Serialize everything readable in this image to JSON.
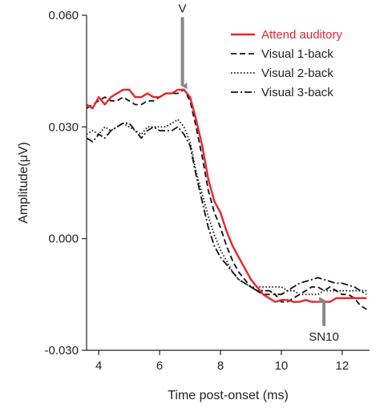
{
  "chart_data": {
    "type": "line",
    "title": "",
    "xlabel": "Time post-onset (ms)",
    "ylabel": "Amplitude(μV)",
    "xlim": [
      3.6,
      12.9
    ],
    "ylim": [
      -0.03,
      0.06
    ],
    "x_ticks": [
      4,
      6,
      8,
      10,
      12
    ],
    "x_tick_labels": [
      "4",
      "6",
      "8",
      "10",
      "12"
    ],
    "y_ticks": [
      -0.03,
      0.0,
      0.03,
      0.06
    ],
    "y_tick_labels": [
      "-0.030",
      "0.000",
      "0.030",
      "0.060"
    ],
    "grid": false,
    "legend_position": "top-right",
    "series": [
      {
        "name": "Attend auditory",
        "color": "#e8242b",
        "dash": "solid",
        "x": [
          3.6,
          3.8,
          4.0,
          4.2,
          4.4,
          4.6,
          4.8,
          5.0,
          5.2,
          5.4,
          5.6,
          5.8,
          6.0,
          6.2,
          6.4,
          6.6,
          6.8,
          7.0,
          7.2,
          7.4,
          7.6,
          7.8,
          8.0,
          8.2,
          8.4,
          8.6,
          8.8,
          9.0,
          9.2,
          9.4,
          9.6,
          9.8,
          10.0,
          10.2,
          10.4,
          10.6,
          10.8,
          11.0,
          11.2,
          11.4,
          11.6,
          11.8,
          12.0,
          12.2,
          12.4,
          12.6,
          12.8
        ],
        "y": [
          0.036,
          0.035,
          0.038,
          0.036,
          0.038,
          0.039,
          0.04,
          0.04,
          0.038,
          0.038,
          0.039,
          0.038,
          0.038,
          0.039,
          0.039,
          0.04,
          0.04,
          0.038,
          0.032,
          0.025,
          0.016,
          0.01,
          0.007,
          0.002,
          -0.002,
          -0.005,
          -0.008,
          -0.011,
          -0.013,
          -0.015,
          -0.016,
          -0.017,
          -0.0165,
          -0.0165,
          -0.017,
          -0.017,
          -0.0165,
          -0.017,
          -0.017,
          -0.017,
          -0.017,
          -0.016,
          -0.016,
          -0.016,
          -0.016,
          -0.016,
          -0.016
        ]
      },
      {
        "name": "Visual 1-back",
        "color": "#111111",
        "dash": "7,4",
        "x": [
          3.6,
          3.8,
          4.0,
          4.2,
          4.4,
          4.6,
          4.8,
          5.0,
          5.2,
          5.4,
          5.6,
          5.8,
          6.0,
          6.2,
          6.4,
          6.6,
          6.8,
          7.0,
          7.2,
          7.4,
          7.6,
          7.8,
          8.0,
          8.2,
          8.4,
          8.6,
          8.8,
          9.0,
          9.2,
          9.4,
          9.6,
          9.8,
          10.0,
          10.2,
          10.4,
          10.6,
          10.8,
          11.0,
          11.2,
          11.4,
          11.6,
          11.8,
          12.0,
          12.2,
          12.4,
          12.6,
          12.8
        ],
        "y": [
          0.035,
          0.036,
          0.037,
          0.038,
          0.037,
          0.037,
          0.038,
          0.037,
          0.036,
          0.036,
          0.037,
          0.037,
          0.038,
          0.039,
          0.039,
          0.039,
          0.04,
          0.037,
          0.03,
          0.022,
          0.013,
          0.007,
          0.003,
          -0.002,
          -0.006,
          -0.009,
          -0.011,
          -0.013,
          -0.014,
          -0.015,
          -0.015,
          -0.015,
          -0.017,
          -0.017,
          -0.016,
          -0.015,
          -0.014,
          -0.013,
          -0.013,
          -0.014,
          -0.013,
          -0.014,
          -0.015,
          -0.015,
          -0.016,
          -0.018,
          -0.019
        ]
      },
      {
        "name": "Visual 2-back",
        "color": "#111111",
        "dash": "1.5,2.5",
        "x": [
          3.6,
          3.8,
          4.0,
          4.2,
          4.4,
          4.6,
          4.8,
          5.0,
          5.2,
          5.4,
          5.6,
          5.8,
          6.0,
          6.2,
          6.4,
          6.6,
          6.8,
          7.0,
          7.2,
          7.4,
          7.6,
          7.8,
          8.0,
          8.2,
          8.4,
          8.6,
          8.8,
          9.0,
          9.2,
          9.4,
          9.6,
          9.8,
          10.0,
          10.2,
          10.4,
          10.6,
          10.8,
          11.0,
          11.2,
          11.4,
          11.6,
          11.8,
          12.0,
          12.2,
          12.4,
          12.6,
          12.8
        ],
        "y": [
          0.028,
          0.029,
          0.028,
          0.03,
          0.029,
          0.03,
          0.031,
          0.03,
          0.029,
          0.028,
          0.03,
          0.03,
          0.03,
          0.03,
          0.031,
          0.032,
          0.03,
          0.026,
          0.018,
          0.012,
          0.006,
          0.001,
          -0.003,
          -0.006,
          -0.009,
          -0.011,
          -0.012,
          -0.013,
          -0.013,
          -0.013,
          -0.013,
          -0.013,
          -0.013,
          -0.014,
          -0.014,
          -0.015,
          -0.015,
          -0.015,
          -0.015,
          -0.014,
          -0.014,
          -0.014,
          -0.014,
          -0.014,
          -0.014,
          -0.014,
          -0.014
        ]
      },
      {
        "name": "Visual 3-back",
        "color": "#111111",
        "dash": "9,3,2,3",
        "x": [
          3.6,
          3.8,
          4.0,
          4.2,
          4.4,
          4.6,
          4.8,
          5.0,
          5.2,
          5.4,
          5.6,
          5.8,
          6.0,
          6.2,
          6.4,
          6.6,
          6.8,
          7.0,
          7.2,
          7.4,
          7.6,
          7.8,
          8.0,
          8.2,
          8.4,
          8.6,
          8.8,
          9.0,
          9.2,
          9.4,
          9.6,
          9.8,
          10.0,
          10.2,
          10.4,
          10.6,
          10.8,
          11.0,
          11.2,
          11.4,
          11.6,
          11.8,
          12.0,
          12.2,
          12.4,
          12.6,
          12.8
        ],
        "y": [
          0.027,
          0.026,
          0.028,
          0.027,
          0.029,
          0.03,
          0.031,
          0.031,
          0.029,
          0.027,
          0.029,
          0.03,
          0.029,
          0.029,
          0.029,
          0.03,
          0.028,
          0.025,
          0.017,
          0.01,
          0.003,
          -0.002,
          -0.005,
          -0.007,
          -0.009,
          -0.011,
          -0.012,
          -0.013,
          -0.014,
          -0.014,
          -0.014,
          -0.015,
          -0.015,
          -0.014,
          -0.013,
          -0.012,
          -0.0115,
          -0.011,
          -0.0105,
          -0.011,
          -0.0115,
          -0.012,
          -0.012,
          -0.0125,
          -0.013,
          -0.014,
          -0.015
        ]
      }
    ],
    "annotations": [
      {
        "text": "V",
        "x": 6.75,
        "y_from": 0.0595,
        "y_to": 0.041,
        "color": "#888888",
        "label_pos": "top"
      },
      {
        "text": "SN10",
        "x": 11.4,
        "y_from": -0.0235,
        "y_to": -0.0165,
        "color": "#888888",
        "label_pos": "bottom"
      }
    ]
  }
}
